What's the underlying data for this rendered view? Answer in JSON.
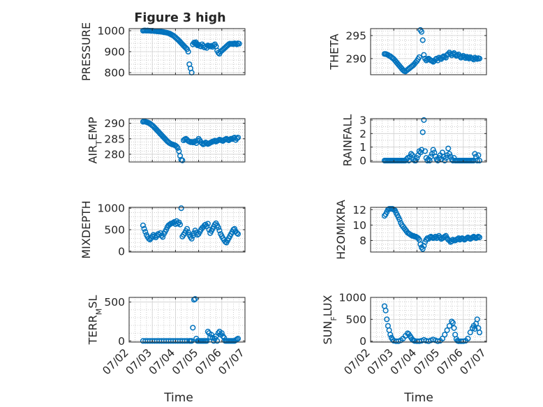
{
  "figure_title": "Figure 3 high",
  "x_axis": {
    "label": "Time",
    "ticks": [
      "07/02",
      "07/03",
      "07/04",
      "07/05",
      "07/06",
      "07/07"
    ],
    "range_days": [
      0,
      5
    ]
  },
  "colors": {
    "marker": "#0072BD",
    "axis": "#262626",
    "grid": "#b8b8b8"
  },
  "chart_data": [
    {
      "type": "scatter",
      "ylabel": "PRESSURE",
      "ylim": [
        790,
        1010
      ],
      "yticks": [
        800,
        900,
        1000
      ],
      "minor_step": 20,
      "x": [
        0.6,
        0.65,
        0.7,
        0.75,
        0.8,
        0.85,
        0.9,
        0.95,
        1.0,
        1.05,
        1.1,
        1.15,
        1.2,
        1.25,
        1.3,
        1.35,
        1.4,
        1.45,
        1.5,
        1.55,
        1.6,
        1.65,
        1.7,
        1.75,
        1.8,
        1.85,
        1.9,
        1.95,
        2.0,
        2.05,
        2.1,
        2.15,
        2.2,
        2.25,
        2.3,
        2.35,
        2.4,
        2.45,
        2.5,
        2.55,
        2.6,
        2.65,
        2.7,
        2.75,
        2.8,
        2.85,
        2.88,
        2.9,
        2.92,
        2.95,
        3.0,
        3.05,
        3.1,
        3.15,
        3.2,
        3.25,
        3.3,
        3.35,
        3.4,
        3.45,
        3.5,
        3.55,
        3.6,
        3.65,
        3.7,
        3.75,
        3.8,
        3.85,
        3.9,
        3.95,
        4.0,
        4.05,
        4.1,
        4.15,
        4.2,
        4.25,
        4.3,
        4.35,
        4.4,
        4.45,
        4.5,
        4.55,
        4.6,
        4.65,
        4.7,
        4.75
      ],
      "y": [
        1000,
        1001,
        1001,
        1000,
        1001,
        1000,
        1000,
        999,
        1000,
        999,
        998,
        998,
        997,
        997,
        996,
        996,
        995,
        994,
        993,
        992,
        991,
        990,
        988,
        986,
        983,
        980,
        977,
        973,
        968,
        963,
        958,
        953,
        947,
        941,
        935,
        929,
        923,
        918,
        912,
        900,
        840,
        820,
        800,
        935,
        943,
        940,
        945,
        937,
        935,
        930,
        933,
        927,
        925,
        935,
        928,
        920,
        925,
        918,
        930,
        927,
        925,
        928,
        923,
        930,
        935,
        925,
        905,
        895,
        890,
        900,
        905,
        910,
        915,
        920,
        925,
        930,
        935,
        938,
        937,
        938,
        936,
        940,
        938,
        935,
        940,
        938
      ]
    },
    {
      "type": "scatter",
      "ylabel": "THETA",
      "ylim": [
        286.5,
        296.5
      ],
      "yticks": [
        290,
        295
      ],
      "minor_step": 1,
      "x": [
        0.6,
        0.65,
        0.7,
        0.75,
        0.8,
        0.85,
        0.9,
        0.95,
        1.0,
        1.05,
        1.1,
        1.15,
        1.2,
        1.25,
        1.3,
        1.35,
        1.4,
        1.45,
        1.5,
        1.55,
        1.6,
        1.65,
        1.7,
        1.75,
        1.8,
        1.85,
        1.9,
        1.95,
        2.0,
        2.05,
        2.1,
        2.15,
        2.2,
        2.25,
        2.3,
        2.35,
        2.4,
        2.45,
        2.5,
        2.55,
        2.6,
        2.65,
        2.7,
        2.75,
        2.8,
        2.85,
        2.9,
        2.95,
        3.0,
        3.05,
        3.1,
        3.15,
        3.2,
        3.25,
        3.3,
        3.35,
        3.4,
        3.45,
        3.5,
        3.55,
        3.6,
        3.65,
        3.7,
        3.75,
        3.8,
        3.85,
        3.9,
        3.95,
        4.0,
        4.05,
        4.1,
        4.15,
        4.2,
        4.25,
        4.3,
        4.35,
        4.4,
        4.45,
        4.5,
        4.55,
        4.6,
        4.65,
        4.7
      ],
      "y": [
        291,
        291,
        290.9,
        290.8,
        290.6,
        290.5,
        290.3,
        290.1,
        289.9,
        289.6,
        289.3,
        289,
        288.7,
        288.4,
        288.1,
        287.8,
        287.5,
        287.3,
        287.2,
        287.4,
        287.6,
        287.8,
        288,
        288.2,
        288.4,
        288.6,
        288.9,
        289.2,
        289.5,
        289.9,
        290.3,
        296.2,
        295.8,
        294,
        290.8,
        290,
        289.6,
        289.8,
        290,
        289.8,
        289.6,
        289.5,
        289.3,
        289.5,
        289.8,
        290,
        289.6,
        290.2,
        290,
        289.9,
        290.3,
        290.5,
        290.4,
        290.2,
        290.8,
        291,
        291.3,
        291,
        290.7,
        291,
        291.2,
        290.9,
        290.6,
        290.7,
        290.9,
        290.5,
        290.2,
        290.4,
        290.6,
        290.3,
        290.1,
        290.4,
        290.2,
        290,
        290.3,
        290.1,
        290,
        289.8,
        290.2,
        290,
        289.9,
        290.1,
        290
      ]
    },
    {
      "type": "scatter",
      "ylabel": "AIR_TEMP",
      "ylim": [
        277.5,
        291.5
      ],
      "yticks": [
        280,
        285,
        290
      ],
      "minor_step": 1,
      "x": [
        0.6,
        0.65,
        0.7,
        0.75,
        0.8,
        0.85,
        0.9,
        0.95,
        1.0,
        1.05,
        1.1,
        1.15,
        1.2,
        1.25,
        1.3,
        1.35,
        1.4,
        1.45,
        1.5,
        1.55,
        1.6,
        1.65,
        1.7,
        1.75,
        1.8,
        1.85,
        1.9,
        1.95,
        2.0,
        2.05,
        2.1,
        2.15,
        2.2,
        2.25,
        2.3,
        2.35,
        2.4,
        2.45,
        2.5,
        2.55,
        2.6,
        2.65,
        2.7,
        2.75,
        2.8,
        2.85,
        2.9,
        2.95,
        3.0,
        3.05,
        3.1,
        3.15,
        3.2,
        3.25,
        3.3,
        3.35,
        3.4,
        3.45,
        3.5,
        3.55,
        3.6,
        3.65,
        3.7,
        3.75,
        3.8,
        3.85,
        3.9,
        3.95,
        4.0,
        4.05,
        4.1,
        4.15,
        4.2,
        4.25,
        4.3,
        4.35,
        4.4,
        4.45,
        4.5,
        4.55,
        4.6,
        4.65,
        4.7
      ],
      "y": [
        290.5,
        290.6,
        290.5,
        290.4,
        290.3,
        290.1,
        289.9,
        289.6,
        289.3,
        289,
        288.6,
        288.2,
        287.8,
        287.4,
        287,
        286.6,
        286.2,
        285.8,
        285.4,
        285,
        284.6,
        284.2,
        283.9,
        283.6,
        283.4,
        283.2,
        283.1,
        283,
        282.8,
        282.5,
        282,
        281,
        279.5,
        278.2,
        278,
        284.5,
        284.8,
        285,
        284.7,
        284.3,
        284.1,
        283.9,
        284,
        283.8,
        284,
        284.2,
        283.6,
        284.4,
        285,
        284.5,
        283.9,
        283.5,
        283.2,
        283.4,
        283.8,
        283.6,
        283.3,
        283.5,
        283.7,
        283.9,
        284.1,
        284.2,
        284.4,
        284.1,
        284.3,
        284.5,
        284.7,
        284.6,
        284.4,
        284.3,
        284.6,
        284.8,
        285,
        284.7,
        284.5,
        284.8,
        285,
        284.9,
        285.2,
        285.4,
        284.6,
        285.1,
        285.4
      ]
    },
    {
      "type": "scatter",
      "ylabel": "RAINFALL",
      "ylim": [
        -0.1,
        3.1
      ],
      "yticks": [
        0,
        1,
        2,
        3
      ],
      "minor_step": 0.5,
      "x": [
        0.6,
        0.65,
        0.7,
        0.75,
        0.8,
        0.85,
        0.9,
        0.95,
        1.0,
        1.05,
        1.1,
        1.15,
        1.2,
        1.25,
        1.3,
        1.35,
        1.4,
        1.45,
        1.5,
        1.55,
        1.6,
        1.65,
        1.7,
        1.75,
        1.8,
        1.85,
        1.9,
        1.95,
        2.0,
        2.05,
        2.1,
        2.15,
        2.2,
        2.25,
        2.3,
        2.35,
        2.4,
        2.45,
        2.5,
        2.55,
        2.6,
        2.65,
        2.7,
        2.75,
        2.8,
        2.85,
        2.9,
        2.95,
        3.0,
        3.05,
        3.1,
        3.15,
        3.2,
        3.25,
        3.3,
        3.35,
        3.4,
        3.45,
        3.5,
        3.55,
        3.6,
        3.65,
        3.7,
        3.75,
        3.8,
        3.85,
        3.9,
        3.95,
        4.0,
        4.05,
        4.1,
        4.15,
        4.2,
        4.25,
        4.3,
        4.35,
        4.4,
        4.45,
        4.5,
        4.55,
        4.6,
        4.65,
        4.7
      ],
      "y": [
        0,
        0,
        0,
        0,
        0,
        0,
        0,
        0,
        0,
        0,
        0,
        0,
        0,
        0,
        0,
        0,
        0,
        0,
        0,
        0.1,
        0.2,
        0,
        0.3,
        0.5,
        0.4,
        0.1,
        0,
        0,
        0.2,
        0.4,
        0.7,
        0.6,
        0.8,
        2.1,
        3.0,
        0.7,
        0.2,
        0,
        0.1,
        0,
        0.3,
        0.5,
        0.8,
        0.6,
        0.3,
        0.1,
        0,
        0.2,
        0.4,
        0.1,
        0.6,
        0.3,
        0,
        0.2,
        0.4,
        0.9,
        0.5,
        0.3,
        0.1,
        0,
        0.2,
        0,
        0,
        0,
        0,
        0,
        0,
        0,
        0,
        0,
        0,
        0,
        0,
        0,
        0,
        0,
        0,
        0,
        0.5,
        0.3,
        0,
        0.4,
        0
      ]
    },
    {
      "type": "scatter",
      "ylabel": "MIXDEPTH",
      "ylim": [
        -20,
        1020
      ],
      "yticks": [
        0,
        500,
        1000
      ],
      "minor_step": 100,
      "x": [
        0.6,
        0.65,
        0.7,
        0.75,
        0.8,
        0.85,
        0.9,
        0.95,
        1.0,
        1.05,
        1.1,
        1.15,
        1.2,
        1.25,
        1.3,
        1.35,
        1.4,
        1.45,
        1.5,
        1.55,
        1.6,
        1.65,
        1.7,
        1.75,
        1.8,
        1.85,
        1.9,
        1.95,
        2.0,
        2.05,
        2.1,
        2.15,
        2.2,
        2.25,
        2.3,
        2.35,
        2.4,
        2.45,
        2.5,
        2.55,
        2.6,
        2.65,
        2.7,
        2.75,
        2.8,
        2.85,
        2.9,
        2.95,
        3.0,
        3.05,
        3.1,
        3.15,
        3.2,
        3.25,
        3.3,
        3.35,
        3.4,
        3.45,
        3.5,
        3.55,
        3.6,
        3.65,
        3.7,
        3.75,
        3.8,
        3.85,
        3.9,
        3.95,
        4.0,
        4.05,
        4.1,
        4.15,
        4.2,
        4.25,
        4.3,
        4.35,
        4.4,
        4.45,
        4.5,
        4.55,
        4.6,
        4.65,
        4.7
      ],
      "y": [
        600,
        520,
        450,
        380,
        330,
        290,
        270,
        300,
        340,
        380,
        350,
        320,
        360,
        400,
        380,
        420,
        360,
        330,
        400,
        450,
        500,
        560,
        600,
        620,
        640,
        650,
        660,
        680,
        630,
        700,
        640,
        670,
        620,
        1000,
        340,
        380,
        420,
        470,
        520,
        440,
        380,
        330,
        290,
        360,
        420,
        480,
        430,
        380,
        400,
        450,
        500,
        540,
        560,
        600,
        620,
        580,
        640,
        500,
        420,
        470,
        520,
        570,
        620,
        650,
        600,
        550,
        480,
        400,
        350,
        300,
        260,
        220,
        200,
        250,
        300,
        350,
        400,
        450,
        500,
        520,
        460,
        420,
        400
      ]
    },
    {
      "type": "scatter",
      "ylabel": "H2OMIXRA",
      "ylim": [
        6.5,
        12.3
      ],
      "yticks": [
        8,
        10,
        12
      ],
      "minor_step": 0.5,
      "x": [
        0.6,
        0.65,
        0.7,
        0.75,
        0.8,
        0.85,
        0.9,
        0.95,
        1.0,
        1.05,
        1.1,
        1.15,
        1.2,
        1.25,
        1.3,
        1.35,
        1.4,
        1.45,
        1.5,
        1.55,
        1.6,
        1.65,
        1.7,
        1.75,
        1.8,
        1.85,
        1.9,
        1.95,
        2.0,
        2.05,
        2.1,
        2.15,
        2.2,
        2.25,
        2.3,
        2.35,
        2.4,
        2.45,
        2.5,
        2.55,
        2.6,
        2.65,
        2.7,
        2.75,
        2.8,
        2.85,
        2.9,
        2.95,
        3.0,
        3.05,
        3.1,
        3.15,
        3.2,
        3.25,
        3.3,
        3.35,
        3.4,
        3.45,
        3.5,
        3.55,
        3.6,
        3.65,
        3.7,
        3.75,
        3.8,
        3.85,
        3.9,
        3.95,
        4.0,
        4.05,
        4.1,
        4.15,
        4.2,
        4.25,
        4.3,
        4.35,
        4.4,
        4.45,
        4.5,
        4.55,
        4.6,
        4.65,
        4.7
      ],
      "y": [
        11.2,
        11.4,
        11.7,
        12,
        12.1,
        12.1,
        12.1,
        12.1,
        12,
        11.9,
        11.6,
        11.3,
        11,
        10.7,
        10.3,
        10,
        9.8,
        9.6,
        9.4,
        9.2,
        9,
        8.9,
        8.8,
        8.7,
        8.6,
        8.6,
        8.5,
        8.5,
        8.4,
        8.3,
        8.1,
        7.5,
        7.1,
        6.9,
        7.3,
        7.8,
        8.1,
        8.3,
        8.2,
        8.4,
        8.5,
        8.4,
        8.3,
        8.4,
        8.5,
        8.3,
        8.4,
        8.6,
        8.4,
        8.2,
        8.3,
        8.4,
        8.5,
        8.6,
        8.3,
        8.1,
        8,
        7.8,
        7.9,
        8.1,
        8,
        8,
        8.1,
        8.2,
        8.3,
        8.1,
        8.2,
        8.3,
        8.2,
        8.1,
        8.2,
        8.3,
        8.4,
        8.3,
        8.2,
        8.3,
        8.4,
        8.5,
        8.4,
        8.3,
        8.4,
        8.5,
        8.4
      ]
    },
    {
      "type": "scatter",
      "ylabel": "TERR_MSL",
      "ylim": [
        -15,
        560
      ],
      "yticks": [
        0,
        500
      ],
      "minor_step": 100,
      "x": [
        0.6,
        0.7,
        0.8,
        0.9,
        1.0,
        1.1,
        1.2,
        1.3,
        1.4,
        1.5,
        1.6,
        1.7,
        1.8,
        1.9,
        2.0,
        2.1,
        2.2,
        2.3,
        2.4,
        2.5,
        2.6,
        2.65,
        2.7,
        2.75,
        2.8,
        2.85,
        2.9,
        2.95,
        3.0,
        3.05,
        3.1,
        3.15,
        3.2,
        3.25,
        3.3,
        3.35,
        3.4,
        3.45,
        3.5,
        3.55,
        3.6,
        3.65,
        3.7,
        3.75,
        3.8,
        3.85,
        3.9,
        3.95,
        4.0,
        4.05,
        4.1,
        4.15,
        4.2,
        4.25,
        4.3,
        4.35,
        4.4,
        4.45,
        4.5,
        4.55,
        4.6,
        4.65,
        4.7
      ],
      "y": [
        0,
        0,
        0,
        0,
        0,
        0,
        0,
        0,
        0,
        0,
        0,
        0,
        0,
        0,
        0,
        0,
        0,
        0,
        0,
        0,
        0,
        0,
        0,
        170,
        530,
        540,
        30,
        0,
        0,
        0,
        0,
        0,
        0,
        0,
        0,
        0,
        120,
        100,
        50,
        80,
        40,
        0,
        30,
        60,
        0,
        100,
        120,
        80,
        100,
        60,
        40,
        0,
        0,
        0,
        0,
        0,
        0,
        0,
        0,
        0,
        10,
        20,
        30
      ]
    },
    {
      "type": "scatter",
      "ylabel": "SUN_FLUX",
      "ylim": [
        -20,
        1000
      ],
      "yticks": [
        0,
        500,
        1000
      ],
      "minor_step": 100,
      "x": [
        0.6,
        0.65,
        0.7,
        0.75,
        0.8,
        0.85,
        0.9,
        0.95,
        1.0,
        1.1,
        1.2,
        1.3,
        1.4,
        1.5,
        1.6,
        1.65,
        1.7,
        1.75,
        1.8,
        1.85,
        1.9,
        2.0,
        2.1,
        2.2,
        2.3,
        2.4,
        2.5,
        2.6,
        2.7,
        2.8,
        2.9,
        3.0,
        3.1,
        3.2,
        3.3,
        3.4,
        3.5,
        3.55,
        3.6,
        3.65,
        3.7,
        3.75,
        3.8,
        3.9,
        4.0,
        4.1,
        4.2,
        4.3,
        4.4,
        4.45,
        4.5,
        4.55,
        4.6,
        4.65,
        4.7
      ],
      "y": [
        800,
        700,
        500,
        350,
        250,
        150,
        80,
        40,
        10,
        0,
        0,
        20,
        60,
        120,
        180,
        160,
        120,
        80,
        40,
        20,
        5,
        0,
        0,
        10,
        30,
        10,
        0,
        20,
        40,
        20,
        0,
        10,
        60,
        150,
        250,
        350,
        450,
        420,
        300,
        150,
        50,
        10,
        0,
        0,
        0,
        10,
        60,
        200,
        300,
        350,
        280,
        400,
        500,
        300,
        200
      ]
    }
  ]
}
